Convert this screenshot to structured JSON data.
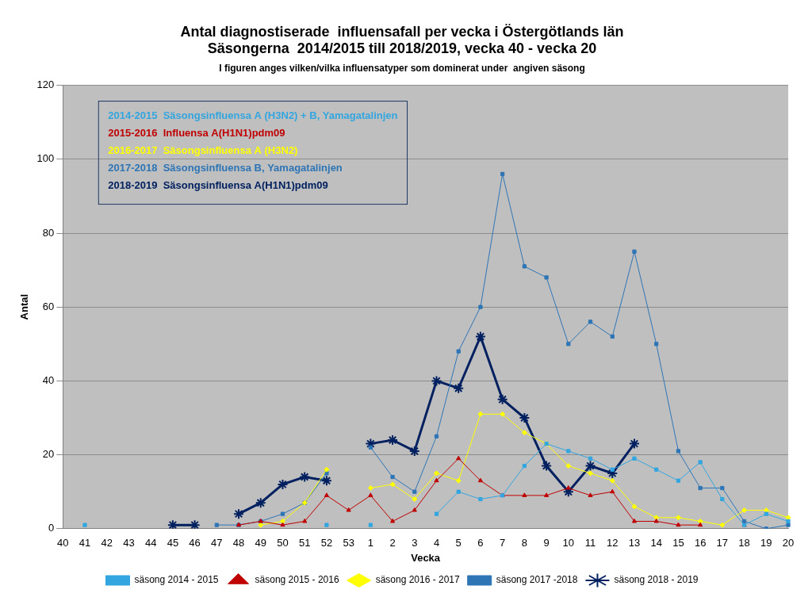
{
  "chart_data": {
    "type": "line",
    "title": [
      "Antal diagnostiserade  influensafall per vecka i Östergötlands län",
      "Säsongerna  2014/2015 till 2018/2019, vecka 40 - vecka 20"
    ],
    "subtitle": "I figuren anges vilken/vilka influensatyper som dominerat under  angiven säsong",
    "x_label": "Vecka",
    "y_label": "Antal",
    "categories": [
      "40",
      "41",
      "42",
      "43",
      "44",
      "45",
      "46",
      "47",
      "48",
      "49",
      "50",
      "51",
      "52",
      "53",
      "1",
      "2",
      "3",
      "4",
      "5",
      "6",
      "7",
      "8",
      "9",
      "10",
      "11",
      "12",
      "13",
      "14",
      "15",
      "16",
      "17",
      "18",
      "19",
      "20"
    ],
    "series": [
      {
        "name": "säsong 2014 - 2015",
        "color": "#33a6e0",
        "marker": "square",
        "values": [
          null,
          1,
          null,
          null,
          null,
          null,
          null,
          null,
          null,
          null,
          null,
          null,
          1,
          null,
          1,
          null,
          null,
          4,
          10,
          8,
          9,
          17,
          23,
          21,
          19,
          16,
          19,
          16,
          13,
          18,
          8,
          1,
          4,
          2
        ]
      },
      {
        "name": "säsong 2015 - 2016",
        "color": "#c00000",
        "marker": "triangle",
        "values": [
          null,
          null,
          null,
          null,
          null,
          null,
          null,
          null,
          1,
          2,
          1,
          2,
          9,
          5,
          9,
          2,
          5,
          13,
          19,
          13,
          9,
          9,
          9,
          11,
          9,
          10,
          2,
          2,
          1,
          1,
          null,
          1,
          null,
          null
        ]
      },
      {
        "name": "säsong 2016 - 2017",
        "color": "#ffff00",
        "marker": "diamond",
        "values": [
          null,
          null,
          null,
          null,
          null,
          null,
          null,
          null,
          null,
          1,
          2,
          7,
          16,
          null,
          11,
          12,
          8,
          15,
          13,
          31,
          31,
          26,
          23,
          17,
          15,
          13,
          6,
          3,
          3,
          2,
          1,
          5,
          5,
          3
        ]
      },
      {
        "name": "säsong 2017 -2018",
        "color": "#2e75b6",
        "marker": "square",
        "values": [
          null,
          null,
          null,
          null,
          null,
          null,
          null,
          1,
          1,
          2,
          4,
          7,
          15,
          null,
          22,
          14,
          10,
          25,
          48,
          60,
          96,
          71,
          68,
          50,
          56,
          52,
          75,
          50,
          21,
          11,
          11,
          2,
          0,
          1
        ]
      },
      {
        "name": "säsong 2018 - 2019",
        "color": "#002060",
        "marker": "star",
        "values": [
          null,
          null,
          null,
          null,
          null,
          1,
          1,
          null,
          4,
          7,
          12,
          14,
          13,
          null,
          23,
          24,
          21,
          40,
          38,
          52,
          35,
          30,
          17,
          10,
          17,
          15,
          23,
          null,
          null,
          null,
          null,
          null,
          null,
          null
        ]
      }
    ],
    "ylim": [
      0,
      120
    ],
    "yticks": [
      0,
      20,
      40,
      60,
      80,
      100,
      120
    ],
    "grid": true,
    "legend": "bottom",
    "annotations": [
      {
        "text": "2014-2015  Säsongsinfluensa A (H3N2) + B, Yamagatalinjen",
        "color": "#33a6e0"
      },
      {
        "text": "2015-2016  Influensa A(H1N1)pdm09",
        "color": "#c00000"
      },
      {
        "text": "2016-2017  Säsongsinfluensa A (H3N2)",
        "color": "#ffff00"
      },
      {
        "text": "2017-2018  Säsongsinfluensa B, Yamagatalinjen",
        "color": "#2e75b6"
      },
      {
        "text": "2018-2019  Säsongsinfluensa A(H1N1)pdm09",
        "color": "#002060"
      }
    ]
  }
}
